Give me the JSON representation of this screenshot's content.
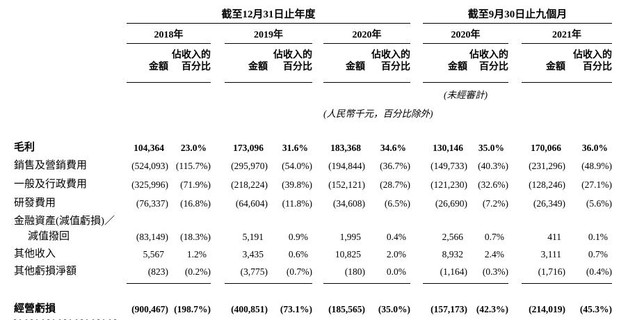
{
  "page": {
    "background": "#ffffff",
    "text_color": "#000000",
    "rule_color": "#000000"
  },
  "table": {
    "period_groups": [
      {
        "title": "截至12月31日止年度",
        "years": [
          "2018年",
          "2019年",
          "2020年"
        ]
      },
      {
        "title": "截至9月30日止九個月",
        "years": [
          "2020年",
          "2021年"
        ]
      }
    ],
    "column_headers": {
      "amount": "金額",
      "pct_line1": "佔收入的",
      "pct_line2": "百分比"
    },
    "notes": {
      "unaudited": "(未經審計)",
      "unit": "(人民幣千元，百分比除外)"
    },
    "rows": [
      {
        "label": "毛利",
        "bold": true,
        "values": [
          "104,364",
          "23.0%",
          "173,096",
          "31.6%",
          "183,368",
          "34.6%",
          "130,146",
          "35.0%",
          "170,066",
          "36.0%"
        ]
      },
      {
        "label": "銷售及營銷費用",
        "values": [
          "(524,093)",
          "(115.7%)",
          "(295,970)",
          "(54.0%)",
          "(194,844)",
          "(36.7%)",
          "(149,733)",
          "(40.3%)",
          "(231,296)",
          "(48.9%)"
        ]
      },
      {
        "label": "一般及行政費用",
        "values": [
          "(325,996)",
          "(71.9%)",
          "(218,224)",
          "(39.8%)",
          "(152,121)",
          "(28.7%)",
          "(121,230)",
          "(32.6%)",
          "(128,246)",
          "(27.1%)"
        ]
      },
      {
        "label": "研發費用",
        "values": [
          "(76,337)",
          "(16.8%)",
          "(64,604)",
          "(11.8%)",
          "(34,608)",
          "(6.5%)",
          "(26,690)",
          "(7.2%)",
          "(26,349)",
          "(5.6%)"
        ]
      },
      {
        "label": "金融資產(減值虧損)／",
        "values": [
          "",
          "",
          "",
          "",
          "",
          "",
          "",
          "",
          "",
          ""
        ]
      },
      {
        "label": "減值撥回",
        "indent": true,
        "values": [
          "(83,149)",
          "(18.3%)",
          "5,191",
          "0.9%",
          "1,995",
          "0.4%",
          "2,566",
          "0.7%",
          "411",
          "0.1%"
        ]
      },
      {
        "label": "其他收入",
        "values": [
          "5,567",
          "1.2%",
          "3,435",
          "0.6%",
          "10,825",
          "2.0%",
          "8,932",
          "2.4%",
          "3,111",
          "0.7%"
        ]
      },
      {
        "label": "其他虧損淨額",
        "underline_after": true,
        "values": [
          "(823)",
          "(0.2%)",
          "(3,775)",
          "(0.7%)",
          "(180)",
          "0.0%",
          "(1,164)",
          "(0.3%)",
          "(1,716)",
          "(0.4%)"
        ]
      },
      {
        "label": "經營虧損",
        "bold": true,
        "values": [
          "(900,467)",
          "(198.7%)",
          "(400,851)",
          "(73.1%)",
          "(185,565)",
          "(35.0%)",
          "(157,173)",
          "(42.3%)",
          "(214,019)",
          "(45.3%)"
        ]
      }
    ]
  }
}
